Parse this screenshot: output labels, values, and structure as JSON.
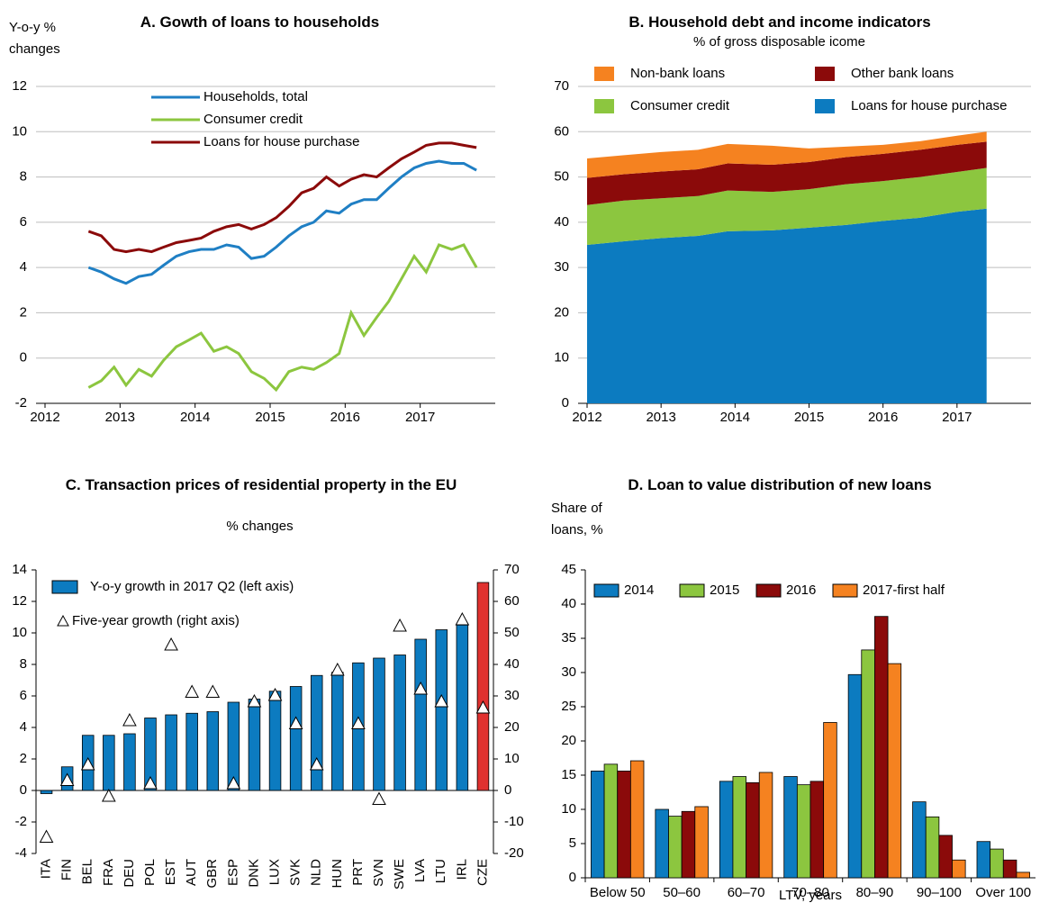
{
  "chart_data": [
    {
      "type": "line",
      "title": "A. Gowth of loans to households",
      "y_label": [
        "Y-o-y %",
        "changes"
      ],
      "x": [
        2012.58,
        2012.75,
        2012.92,
        2013.08,
        2013.25,
        2013.42,
        2013.58,
        2013.75,
        2013.92,
        2014.08,
        2014.25,
        2014.42,
        2014.58,
        2014.75,
        2014.92,
        2015.08,
        2015.25,
        2015.42,
        2015.58,
        2015.75,
        2015.92,
        2016.08,
        2016.25,
        2016.42,
        2016.58,
        2016.75,
        2016.92,
        2017.08,
        2017.25,
        2017.42,
        2017.58,
        2017.75
      ],
      "series": [
        {
          "name": "Households, total",
          "color": "#1f7fc4",
          "values": [
            4.0,
            3.8,
            3.5,
            3.3,
            3.6,
            3.7,
            4.1,
            4.5,
            4.7,
            4.8,
            4.8,
            5.0,
            4.9,
            4.4,
            4.5,
            4.9,
            5.4,
            5.8,
            6.0,
            6.5,
            6.4,
            6.8,
            7.0,
            7.0,
            7.5,
            8.0,
            8.4,
            8.6,
            8.7,
            8.6,
            8.6,
            8.3
          ]
        },
        {
          "name": "Consumer credit",
          "color": "#8cc63f",
          "values": [
            -1.3,
            -1.0,
            -0.4,
            -1.2,
            -0.5,
            -0.8,
            -0.1,
            0.5,
            0.8,
            1.1,
            0.3,
            0.5,
            0.2,
            -0.6,
            -0.9,
            -1.4,
            -0.6,
            -0.4,
            -0.5,
            -0.2,
            0.2,
            2.0,
            1.0,
            1.8,
            2.5,
            3.5,
            4.5,
            3.8,
            5.0,
            4.8,
            5.0,
            4.0
          ]
        },
        {
          "name": "Loans for house purchase",
          "color": "#8b0a0a",
          "values": [
            5.6,
            5.4,
            4.8,
            4.7,
            4.8,
            4.7,
            4.9,
            5.1,
            5.2,
            5.3,
            5.6,
            5.8,
            5.9,
            5.7,
            5.9,
            6.2,
            6.7,
            7.3,
            7.5,
            8.0,
            7.6,
            7.9,
            8.1,
            8.0,
            8.4,
            8.8,
            9.1,
            9.4,
            9.5,
            9.5,
            9.4,
            9.3
          ]
        }
      ],
      "xlim": [
        2012,
        2018
      ],
      "xticks": [
        2012,
        2013,
        2014,
        2015,
        2016,
        2017
      ],
      "ylim": [
        -2,
        12
      ],
      "yticks": [
        -2,
        0,
        2,
        4,
        6,
        8,
        10,
        12
      ],
      "grid": true
    },
    {
      "type": "area",
      "stacked": true,
      "title": "B. Household debt and income indicators",
      "subtitle": "% of gross disposable icome",
      "x": [
        2012.0,
        2012.5,
        2013.0,
        2013.5,
        2013.9,
        2014.5,
        2015.0,
        2015.5,
        2016.0,
        2016.5,
        2017.0,
        2017.4
      ],
      "series": [
        {
          "name": "Loans for house purchase",
          "color": "#0c7bc0",
          "values": [
            35,
            35.8,
            36.5,
            37,
            38,
            38.2,
            38.8,
            39.4,
            40.3,
            41,
            42.3,
            43
          ]
        },
        {
          "name": "Consumer credit",
          "color": "#8cc63f",
          "values": [
            8.8,
            9,
            8.8,
            8.8,
            9,
            8.5,
            8.5,
            9,
            8.8,
            9,
            8.8,
            9
          ]
        },
        {
          "name": "Other bank loans",
          "color": "#8b0a0a",
          "values": [
            6,
            5.8,
            5.9,
            5.9,
            6,
            6,
            6,
            6,
            6,
            6,
            6,
            5.8
          ]
        },
        {
          "name": "Non-bank loans",
          "color": "#f58220",
          "values": [
            4.3,
            4.2,
            4.3,
            4.3,
            4.3,
            4.2,
            3,
            2.3,
            2,
            1.9,
            2,
            2.2
          ]
        }
      ],
      "xlim": [
        2012,
        2018
      ],
      "xticks": [
        2012,
        2013,
        2014,
        2015,
        2016,
        2017
      ],
      "ylim": [
        0,
        70
      ],
      "yticks": [
        0,
        10,
        20,
        30,
        40,
        50,
        60,
        70
      ],
      "grid": true
    },
    {
      "type": "bar",
      "title": "C. Transaction prices of residential property in the EU",
      "subtitle": "% changes",
      "categories": [
        "ITA",
        "FIN",
        "BEL",
        "FRA",
        "DEU",
        "POL",
        "EST",
        "AUT",
        "GBR",
        "ESP",
        "DNK",
        "LUX",
        "SVK",
        "NLD",
        "HUN",
        "PRT",
        "SVN",
        "SWE",
        "LVA",
        "LTU",
        "IRL",
        "CZE"
      ],
      "series": [
        {
          "name": "Y-o-y growth in 2017 Q2 (left axis)",
          "color": "#0c7bc0",
          "colors": [
            "#0c7bc0",
            "#0c7bc0",
            "#0c7bc0",
            "#0c7bc0",
            "#0c7bc0",
            "#0c7bc0",
            "#0c7bc0",
            "#0c7bc0",
            "#0c7bc0",
            "#0c7bc0",
            "#0c7bc0",
            "#0c7bc0",
            "#0c7bc0",
            "#0c7bc0",
            "#0c7bc0",
            "#0c7bc0",
            "#0c7bc0",
            "#0c7bc0",
            "#0c7bc0",
            "#0c7bc0",
            "#0c7bc0",
            "#e0312f"
          ],
          "values": [
            -0.2,
            1.5,
            3.5,
            3.5,
            3.6,
            4.6,
            4.8,
            4.9,
            5.0,
            5.6,
            5.8,
            6.3,
            6.6,
            7.3,
            7.5,
            8.1,
            8.4,
            8.6,
            9.6,
            10.2,
            10.5,
            13.2
          ]
        },
        {
          "name": "Five-year growth (right axis)",
          "type": "scatter",
          "marker": "triangle",
          "color": "#ffffff",
          "axis": "y2",
          "values": [
            -15,
            3,
            8,
            -2,
            22,
            2,
            46,
            31,
            31,
            2,
            28,
            30,
            21,
            8,
            38,
            21,
            -3,
            52,
            32,
            28,
            54,
            26
          ]
        }
      ],
      "ylim": [
        -4,
        14
      ],
      "yticks": [
        -4,
        -2,
        0,
        2,
        4,
        6,
        8,
        10,
        12,
        14
      ],
      "y2lim": [
        -20,
        70
      ],
      "y2ticks": [
        -20,
        -10,
        0,
        10,
        20,
        30,
        40,
        50,
        60,
        70
      ],
      "grid": false
    },
    {
      "type": "bar",
      "title": "D. Loan to value distribution of new loans",
      "y_label": [
        "Share of",
        "loans, %"
      ],
      "x_label": "LTV, years",
      "categories": [
        "Below 50",
        "50–60",
        "60–70",
        "70–80",
        "80–90",
        "90–100",
        "Over 100"
      ],
      "series": [
        {
          "name": "2014",
          "color": "#0c7bc0",
          "values": [
            15.6,
            10,
            14.1,
            14.8,
            29.7,
            11.1,
            5.3
          ]
        },
        {
          "name": "2015",
          "color": "#8cc63f",
          "values": [
            16.6,
            9,
            14.8,
            13.6,
            33.3,
            8.9,
            4.2
          ]
        },
        {
          "name": "2016",
          "color": "#8b0a0a",
          "values": [
            15.6,
            9.7,
            13.9,
            14.1,
            38.2,
            6.2,
            2.6
          ]
        },
        {
          "name": "2017-first half",
          "color": "#f58220",
          "values": [
            17.1,
            10.4,
            15.4,
            22.7,
            31.3,
            2.6,
            0.8
          ]
        }
      ],
      "ylim": [
        0,
        45
      ],
      "yticks": [
        0,
        5,
        10,
        15,
        20,
        25,
        30,
        35,
        40,
        45
      ],
      "grid": false
    }
  ]
}
